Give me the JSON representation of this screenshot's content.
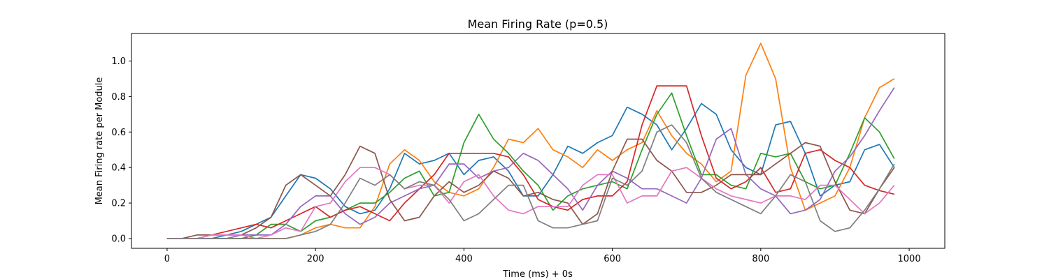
{
  "chart_data": {
    "type": "line",
    "title": "Mean Firing Rate (p=0.5)",
    "xlabel": "Time (ms) + 0s",
    "ylabel": "Mean Firing rate per Module",
    "xlim": [
      -48,
      1048
    ],
    "ylim": [
      -0.055,
      1.155
    ],
    "xticks": [
      0,
      200,
      400,
      600,
      800,
      1000
    ],
    "yticks": [
      0.0,
      0.2,
      0.4,
      0.6,
      0.8,
      1.0
    ],
    "xtick_labels": [
      "0",
      "200",
      "400",
      "600",
      "800",
      "1000"
    ],
    "ytick_labels": [
      "0.0",
      "0.2",
      "0.4",
      "0.6",
      "0.8",
      "1.0"
    ],
    "grid": false,
    "legend": "none",
    "x": [
      0,
      20,
      40,
      60,
      80,
      100,
      120,
      140,
      160,
      180,
      200,
      220,
      240,
      260,
      280,
      300,
      320,
      340,
      360,
      380,
      400,
      420,
      440,
      460,
      480,
      500,
      520,
      540,
      560,
      580,
      600,
      620,
      640,
      660,
      680,
      700,
      720,
      740,
      760,
      780,
      800,
      820,
      840,
      860,
      880,
      900,
      920,
      940,
      960,
      980
    ],
    "series": [
      {
        "color": "#1f77b4",
        "values": [
          0,
          0,
          0,
          0,
          0.02,
          0.04,
          0.08,
          0.12,
          0.24,
          0.36,
          0.34,
          0.28,
          0.18,
          0.14,
          0.16,
          0.28,
          0.48,
          0.42,
          0.44,
          0.48,
          0.36,
          0.44,
          0.46,
          0.38,
          0.24,
          0.24,
          0.36,
          0.52,
          0.48,
          0.54,
          0.58,
          0.74,
          0.7,
          0.64,
          0.5,
          0.62,
          0.76,
          0.7,
          0.5,
          0.4,
          0.36,
          0.64,
          0.66,
          0.48,
          0.24,
          0.3,
          0.32,
          0.5,
          0.53,
          0.4
        ]
      },
      {
        "color": "#ff7f0e",
        "values": [
          0,
          0,
          0,
          0,
          0,
          0,
          0,
          0,
          0,
          0.02,
          0.06,
          0.08,
          0.06,
          0.06,
          0.18,
          0.42,
          0.5,
          0.44,
          0.32,
          0.26,
          0.24,
          0.28,
          0.4,
          0.56,
          0.54,
          0.62,
          0.5,
          0.46,
          0.4,
          0.5,
          0.44,
          0.5,
          0.54,
          0.72,
          0.58,
          0.48,
          0.42,
          0.32,
          0.38,
          0.92,
          1.1,
          0.9,
          0.4,
          0.16,
          0.2,
          0.24,
          0.4,
          0.68,
          0.85,
          0.9
        ]
      },
      {
        "color": "#2ca02c",
        "values": [
          0,
          0,
          0,
          0,
          0,
          0,
          0.02,
          0.08,
          0.08,
          0.04,
          0.1,
          0.12,
          0.16,
          0.2,
          0.2,
          0.26,
          0.34,
          0.38,
          0.24,
          0.26,
          0.54,
          0.7,
          0.56,
          0.48,
          0.38,
          0.3,
          0.16,
          0.24,
          0.28,
          0.3,
          0.32,
          0.28,
          0.5,
          0.7,
          0.82,
          0.58,
          0.36,
          0.36,
          0.3,
          0.28,
          0.48,
          0.46,
          0.48,
          0.32,
          0.28,
          0.3,
          0.48,
          0.68,
          0.6,
          0.45
        ]
      },
      {
        "color": "#d62728",
        "values": [
          0,
          0,
          0,
          0.02,
          0.04,
          0.06,
          0.08,
          0.06,
          0.1,
          0.14,
          0.18,
          0.12,
          0.16,
          0.18,
          0.14,
          0.1,
          0.2,
          0.28,
          0.36,
          0.48,
          0.48,
          0.48,
          0.48,
          0.46,
          0.36,
          0.22,
          0.18,
          0.16,
          0.22,
          0.24,
          0.24,
          0.32,
          0.64,
          0.86,
          0.86,
          0.86,
          0.58,
          0.34,
          0.28,
          0.32,
          0.4,
          0.26,
          0.28,
          0.48,
          0.5,
          0.44,
          0.4,
          0.3,
          0.27,
          0.25
        ]
      },
      {
        "color": "#9467bd",
        "values": [
          0,
          0,
          0,
          0,
          0,
          0.02,
          0.02,
          0.02,
          0.08,
          0.18,
          0.24,
          0.24,
          0.14,
          0.08,
          0.12,
          0.2,
          0.24,
          0.28,
          0.3,
          0.42,
          0.42,
          0.34,
          0.38,
          0.4,
          0.48,
          0.44,
          0.36,
          0.28,
          0.16,
          0.3,
          0.38,
          0.34,
          0.28,
          0.28,
          0.24,
          0.2,
          0.34,
          0.56,
          0.62,
          0.36,
          0.28,
          0.24,
          0.14,
          0.16,
          0.22,
          0.38,
          0.46,
          0.58,
          0.72,
          0.85
        ]
      },
      {
        "color": "#8c564b",
        "values": [
          0,
          0,
          0.02,
          0.02,
          0.02,
          0.02,
          0.06,
          0.12,
          0.3,
          0.36,
          0.3,
          0.24,
          0.36,
          0.52,
          0.48,
          0.22,
          0.1,
          0.12,
          0.24,
          0.32,
          0.26,
          0.3,
          0.38,
          0.34,
          0.24,
          0.26,
          0.22,
          0.2,
          0.08,
          0.14,
          0.38,
          0.56,
          0.56,
          0.44,
          0.38,
          0.26,
          0.26,
          0.3,
          0.36,
          0.36,
          0.36,
          0.42,
          0.48,
          0.54,
          0.52,
          0.32,
          0.16,
          0.14,
          0.28,
          0.4
        ]
      },
      {
        "color": "#e377c2",
        "values": [
          0,
          0,
          0,
          0.02,
          0.02,
          0.02,
          0,
          0.02,
          0.06,
          0.04,
          0.18,
          0.2,
          0.32,
          0.4,
          0.4,
          0.36,
          0.28,
          0.3,
          0.3,
          0.2,
          0.32,
          0.36,
          0.24,
          0.16,
          0.14,
          0.18,
          0.18,
          0.18,
          0.3,
          0.36,
          0.36,
          0.2,
          0.24,
          0.24,
          0.38,
          0.4,
          0.34,
          0.28,
          0.24,
          0.22,
          0.2,
          0.24,
          0.24,
          0.22,
          0.3,
          0.3,
          0.22,
          0.14,
          0.2,
          0.3
        ]
      },
      {
        "color": "#7f7f7f",
        "values": [
          0,
          0,
          0,
          0,
          0,
          0,
          0,
          0,
          0,
          0.02,
          0.04,
          0.08,
          0.2,
          0.34,
          0.3,
          0.36,
          0.28,
          0.32,
          0.3,
          0.22,
          0.1,
          0.14,
          0.22,
          0.3,
          0.3,
          0.1,
          0.06,
          0.06,
          0.08,
          0.1,
          0.34,
          0.3,
          0.38,
          0.6,
          0.64,
          0.54,
          0.34,
          0.26,
          0.22,
          0.18,
          0.14,
          0.24,
          0.36,
          0.32,
          0.1,
          0.04,
          0.06,
          0.16,
          0.28,
          0.42
        ]
      }
    ]
  }
}
